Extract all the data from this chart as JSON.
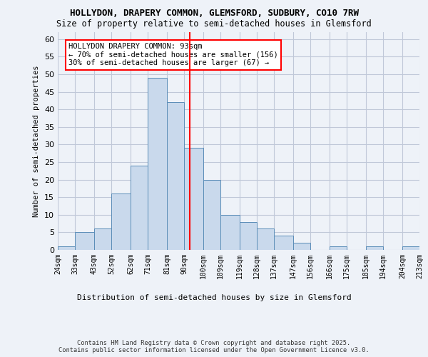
{
  "title1": "HOLLYDON, DRAPERY COMMON, GLEMSFORD, SUDBURY, CO10 7RW",
  "title2": "Size of property relative to semi-detached houses in Glemsford",
  "xlabel": "Distribution of semi-detached houses by size in Glemsford",
  "ylabel": "Number of semi-detached properties",
  "footer": "Contains HM Land Registry data © Crown copyright and database right 2025.\nContains public sector information licensed under the Open Government Licence v3.0.",
  "bin_labels": [
    "24sqm",
    "33sqm",
    "43sqm",
    "52sqm",
    "62sqm",
    "71sqm",
    "81sqm",
    "90sqm",
    "100sqm",
    "109sqm",
    "119sqm",
    "128sqm",
    "137sqm",
    "147sqm",
    "156sqm",
    "166sqm",
    "175sqm",
    "185sqm",
    "194sqm",
    "204sqm",
    "213sqm"
  ],
  "bin_edges": [
    24,
    33,
    43,
    52,
    62,
    71,
    81,
    90,
    100,
    109,
    119,
    128,
    137,
    147,
    156,
    166,
    175,
    185,
    194,
    204,
    213
  ],
  "bar_values": [
    1,
    5,
    6,
    16,
    24,
    49,
    42,
    29,
    20,
    10,
    8,
    6,
    4,
    2,
    0,
    1,
    0,
    1,
    0,
    1
  ],
  "bar_color": "#c9d9ec",
  "bar_edge_color": "#5b8db8",
  "grid_color": "#c0c8d8",
  "background_color": "#eef2f8",
  "vline_x": 93,
  "vline_color": "red",
  "annotation_text": "HOLLYDON DRAPERY COMMON: 93sqm\n← 70% of semi-detached houses are smaller (156)\n30% of semi-detached houses are larger (67) →",
  "annotation_box_color": "white",
  "annotation_box_edge": "red",
  "ylim": [
    0,
    62
  ],
  "yticks": [
    0,
    5,
    10,
    15,
    20,
    25,
    30,
    35,
    40,
    45,
    50,
    55,
    60
  ]
}
